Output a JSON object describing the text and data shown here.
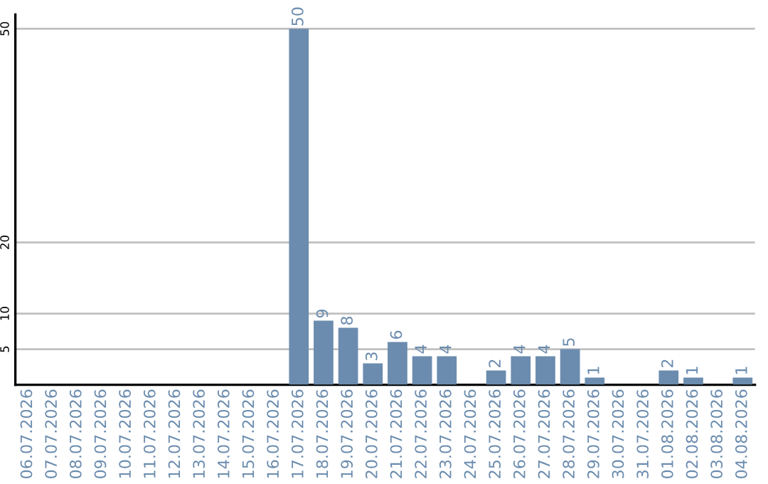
{
  "chart_data": {
    "type": "bar",
    "categories": [
      "06.07.2026",
      "07.07.2026",
      "08.07.2026",
      "09.07.2026",
      "10.07.2026",
      "11.07.2026",
      "12.07.2026",
      "13.07.2026",
      "14.07.2026",
      "15.07.2026",
      "16.07.2026",
      "17.07.2026",
      "18.07.2026",
      "19.07.2026",
      "20.07.2026",
      "21.07.2026",
      "22.07.2026",
      "23.07.2026",
      "24.07.2026",
      "25.07.2026",
      "26.07.2026",
      "27.07.2026",
      "28.07.2026",
      "29.07.2026",
      "30.07.2026",
      "31.07.2026",
      "01.08.2026",
      "02.08.2026",
      "03.08.2026",
      "04.08.2026"
    ],
    "values": [
      0,
      0,
      0,
      0,
      0,
      0,
      0,
      0,
      0,
      0,
      0,
      50,
      9,
      8,
      3,
      6,
      4,
      4,
      0,
      2,
      4,
      4,
      5,
      1,
      0,
      0,
      2,
      1,
      0,
      1
    ],
    "value_labels": [
      null,
      null,
      null,
      null,
      null,
      null,
      null,
      null,
      null,
      null,
      null,
      "50",
      "9",
      "8",
      "3",
      "6",
      "4",
      "4",
      null,
      "2",
      "4",
      "4",
      "5",
      "1",
      null,
      null,
      "2",
      "1",
      null,
      "1"
    ],
    "color": "#6b8cae",
    "ylim": [
      0,
      52
    ],
    "yticks": [
      5,
      10,
      20,
      50
    ],
    "grid": "y"
  }
}
